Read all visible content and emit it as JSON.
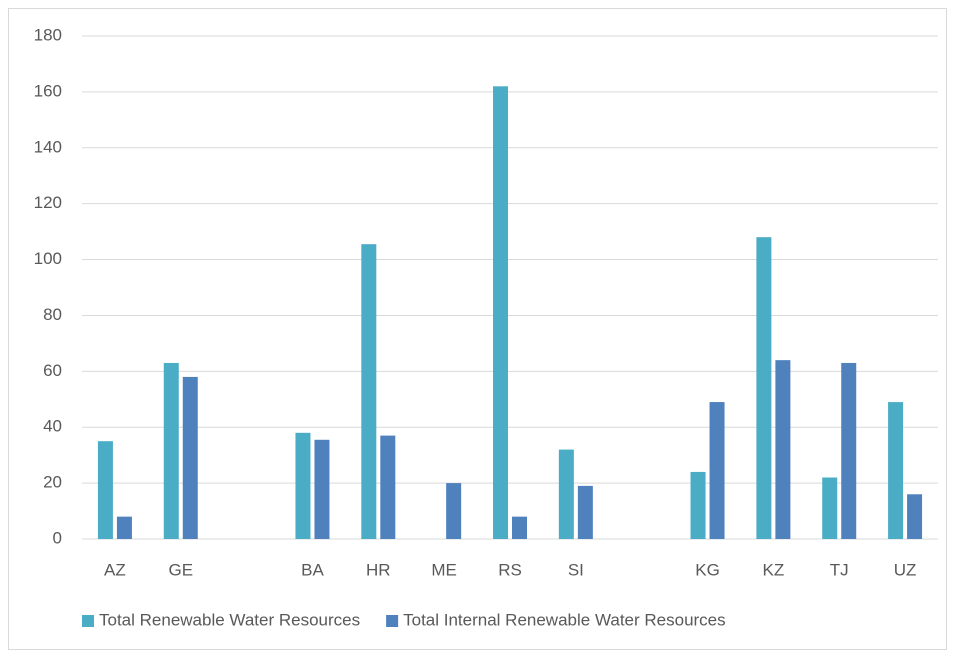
{
  "chart_data": {
    "type": "bar",
    "categories": [
      "AZ",
      "GE",
      null,
      "BA",
      "HR",
      "ME",
      "RS",
      "SI",
      null,
      "KG",
      "KZ",
      "TJ",
      "UZ"
    ],
    "series": [
      {
        "name": "Total Renewable Water Resources",
        "color": "#4bacc6",
        "values": [
          35,
          63,
          null,
          38,
          105.5,
          null,
          162,
          32,
          null,
          24,
          108,
          22,
          49
        ]
      },
      {
        "name": "Total Internal Renewable Water Resources",
        "color": "#4f81bd",
        "values": [
          8,
          58,
          null,
          35.5,
          37,
          20,
          8,
          19,
          null,
          49,
          64,
          63,
          16
        ]
      }
    ],
    "ylim": [
      0,
      180
    ],
    "yticks": [
      0,
      20,
      40,
      60,
      80,
      100,
      120,
      140,
      160,
      180
    ],
    "grid": true,
    "legend": "bottom"
  }
}
